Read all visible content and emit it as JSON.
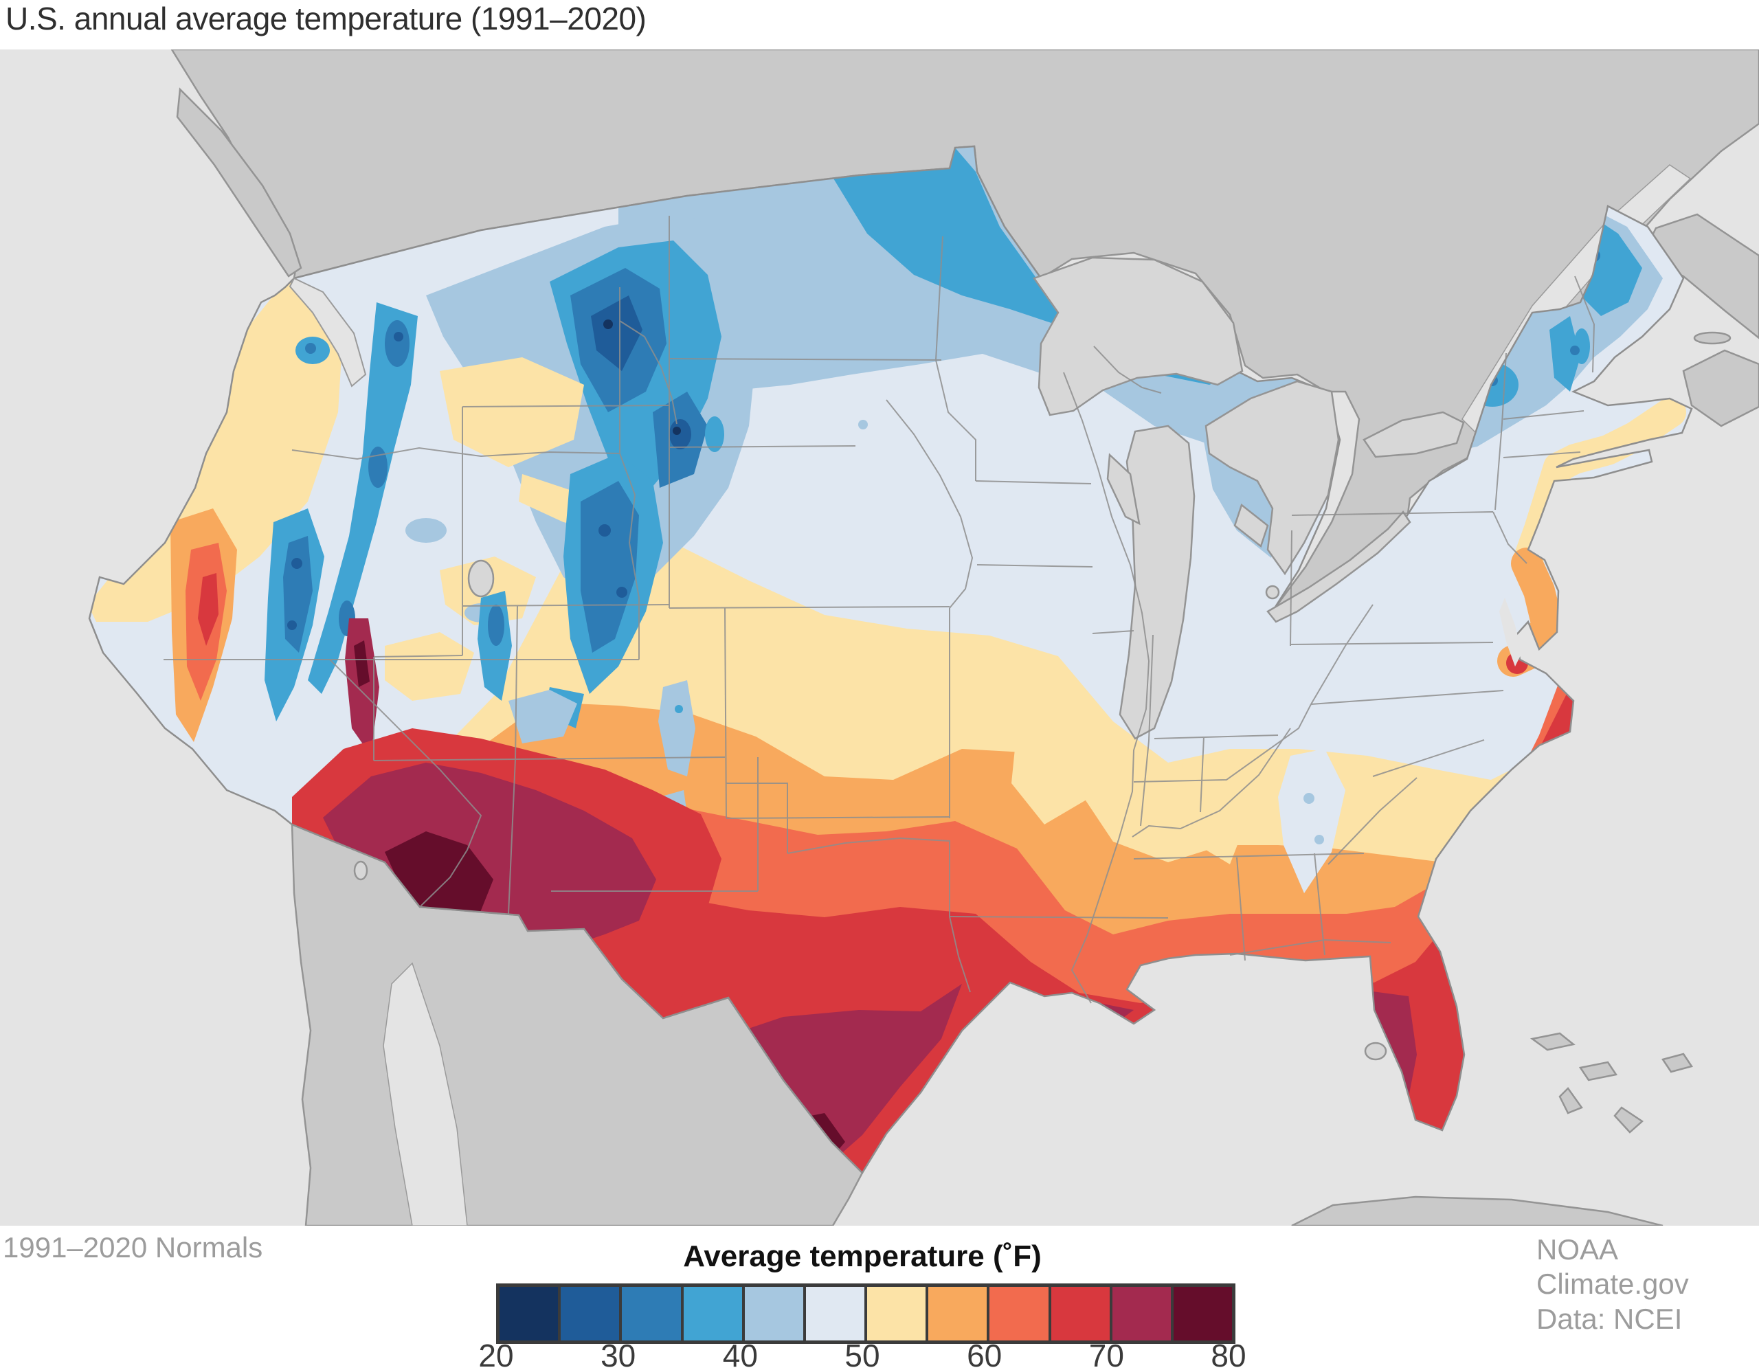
{
  "title": "U.S. annual average temperature (1991–2020)",
  "footer": {
    "left_caption": "1991–2020 Normals",
    "right_caption_line1": "NOAA Climate.gov",
    "right_caption_line2": "Data: NCEI"
  },
  "legend": {
    "title": "Average temperature (˚F)",
    "ticks": [
      "20",
      "30",
      "40",
      "50",
      "60",
      "70",
      "80"
    ],
    "tick_min_f": 20,
    "tick_max_f": 80,
    "swatches": [
      {
        "color": "#14335f",
        "range_f": [
          20,
          25
        ]
      },
      {
        "color": "#1f5c99",
        "range_f": [
          25,
          30
        ]
      },
      {
        "color": "#2e7cb5",
        "range_f": [
          30,
          35
        ]
      },
      {
        "color": "#41a4d3",
        "range_f": [
          35,
          40
        ]
      },
      {
        "color": "#a6c7e0",
        "range_f": [
          40,
          45
        ]
      },
      {
        "color": "#e0e8f2",
        "range_f": [
          45,
          50
        ]
      },
      {
        "color": "#fce3a7",
        "range_f": [
          50,
          55
        ]
      },
      {
        "color": "#f8a95d",
        "range_f": [
          55,
          60
        ]
      },
      {
        "color": "#f26b4e",
        "range_f": [
          60,
          65
        ]
      },
      {
        "color": "#d8383e",
        "range_f": [
          65,
          70
        ]
      },
      {
        "color": "#a32a4f",
        "range_f": [
          70,
          75
        ]
      },
      {
        "color": "#650d2b",
        "range_f": [
          75,
          80
        ]
      }
    ],
    "border_color": "#3b3b3b"
  },
  "map": {
    "description": "Contiguous United States shaded by 1991–2020 annual average temperature; Canada, Mexico, Cuba and Bahamas in gray; Great Lakes unshaded",
    "ocean_color": "#e4e4e4",
    "foreign_land_color": "#c9c9c9",
    "lake_color": "#d7d7d7",
    "coastline_color": "#949494",
    "state_border_color": "#8e8e8e",
    "coldest_regions": "Northern Rockies, northern Minnesota, northern Maine (20–40 ˚F)",
    "warmest_regions": "Desert Southwest, South Texas, South Florida (70–80 ˚F)"
  }
}
